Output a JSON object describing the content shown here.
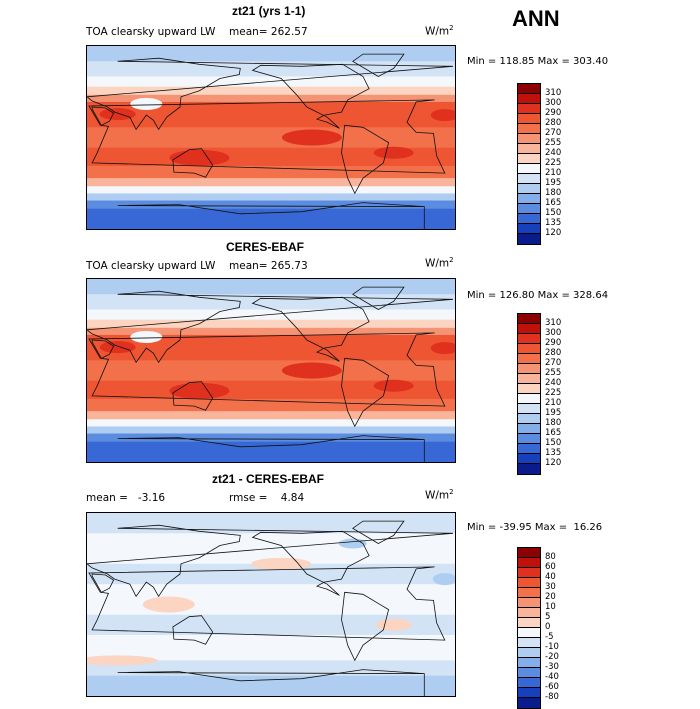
{
  "season": "ANN",
  "panels": [
    {
      "title": "zt21 (yrs 1-1)",
      "field": "TOA clearsky upward LW",
      "stat1": "mean= 262.57",
      "stat2": "",
      "units": "W/m",
      "units_exp": "2",
      "minmax": "Min = 118.85 Max = 303.40",
      "levels": [
        "310",
        "300",
        "290",
        "280",
        "270",
        "255",
        "240",
        "225",
        "210",
        "195",
        "180",
        "165",
        "150",
        "135",
        "120"
      ],
      "colors": [
        "#8b0000",
        "#c0100a",
        "#e0301e",
        "#ee5533",
        "#f2714a",
        "#f59475",
        "#f8b59c",
        "#fbd4c2",
        "#f4f8fc",
        "#d2e3f6",
        "#aecdf1",
        "#84aeea",
        "#5b8ce0",
        "#3868d6",
        "#1740bc",
        "#0a1c8c"
      ]
    },
    {
      "title": "CERES-EBAF",
      "field": "TOA clearsky upward LW",
      "stat1": "mean= 265.73",
      "stat2": "",
      "units": "W/m",
      "units_exp": "2",
      "minmax": "Min = 126.80 Max = 328.64",
      "levels": [
        "310",
        "300",
        "290",
        "280",
        "270",
        "255",
        "240",
        "225",
        "210",
        "195",
        "180",
        "165",
        "150",
        "135",
        "120"
      ],
      "colors": [
        "#8b0000",
        "#c0100a",
        "#e0301e",
        "#ee5533",
        "#f2714a",
        "#f59475",
        "#f8b59c",
        "#fbd4c2",
        "#f4f8fc",
        "#d2e3f6",
        "#aecdf1",
        "#84aeea",
        "#5b8ce0",
        "#3868d6",
        "#1740bc",
        "#0a1c8c"
      ]
    },
    {
      "title": "zt21 - CERES-EBAF",
      "field": "",
      "stat1": "mean =   -3.16",
      "stat2": "rmse =    4.84",
      "units": "W/m",
      "units_exp": "2",
      "minmax": "Min = -39.95 Max =  16.26",
      "levels": [
        "80",
        "60",
        "40",
        "30",
        "20",
        "10",
        "5",
        "0",
        "-5",
        "-10",
        "-20",
        "-30",
        "-40",
        "-60",
        "-80"
      ],
      "colors": [
        "#8b0000",
        "#c0100a",
        "#e0301e",
        "#ee5533",
        "#f2714a",
        "#f59475",
        "#f8b59c",
        "#fbd4c2",
        "#f4f8fc",
        "#d2e3f6",
        "#aecdf1",
        "#84aeea",
        "#5b8ce0",
        "#3868d6",
        "#1740bc",
        "#0a1c8c"
      ]
    }
  ],
  "chart_data": [
    {
      "type": "heatmap",
      "title": "zt21 (yrs 1-1)",
      "subtitle": "TOA clearsky upward LW",
      "units": "W/m2",
      "mean": 262.57,
      "min": 118.85,
      "max": 303.4,
      "contour_levels": [
        120,
        135,
        150,
        165,
        180,
        195,
        210,
        225,
        240,
        255,
        270,
        280,
        290,
        300,
        310
      ],
      "zonal_pattern": "high values (270-300) over tropics/subtropics, low values (120-180) over Antarctica and Arctic"
    },
    {
      "type": "heatmap",
      "title": "CERES-EBAF",
      "subtitle": "TOA clearsky upward LW",
      "units": "W/m2",
      "mean": 265.73,
      "min": 126.8,
      "max": 328.64,
      "contour_levels": [
        120,
        135,
        150,
        165,
        180,
        195,
        210,
        225,
        240,
        255,
        270,
        280,
        290,
        300,
        310
      ]
    },
    {
      "type": "heatmap",
      "title": "zt21 - CERES-EBAF",
      "units": "W/m2",
      "mean": -3.16,
      "rmse": 4.84,
      "min": -39.95,
      "max": 16.26,
      "contour_levels": [
        -80,
        -60,
        -40,
        -30,
        -20,
        -10,
        -5,
        0,
        5,
        10,
        20,
        30,
        40,
        60,
        80
      ]
    }
  ]
}
